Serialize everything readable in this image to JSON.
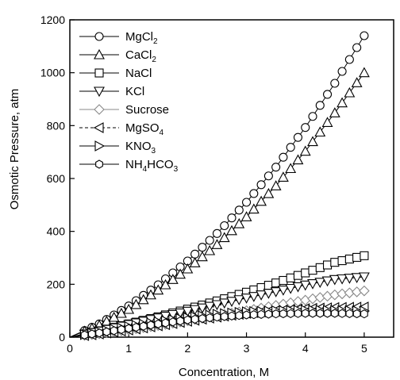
{
  "chart_data": {
    "type": "scatter",
    "xlabel": "Concentration, M",
    "ylabel": "Osmotic Pressure, atm",
    "xlim": [
      0,
      5.5
    ],
    "ylim": [
      0,
      1200
    ],
    "xticks": [
      "0",
      "1",
      "2",
      "3",
      "4",
      "5"
    ],
    "yticks": [
      "0",
      "200",
      "400",
      "600",
      "800",
      "1000",
      "1200"
    ],
    "grid": false,
    "legend_position": "top-left",
    "series": [
      {
        "name": "MgCl2",
        "label_main": "MgCl",
        "label_sub": "2",
        "label_tail": "",
        "marker": "circle",
        "dashed": false,
        "x": [
          0,
          0.5,
          1,
          1.5,
          2,
          2.5,
          3,
          3.5,
          4,
          4.5,
          5
        ],
        "y": [
          0,
          50,
          118,
          198,
          288,
          392,
          510,
          643,
          793,
          960,
          1140
        ]
      },
      {
        "name": "CaCl2",
        "label_main": "CaCl",
        "label_sub": "2",
        "label_tail": "",
        "marker": "triangle-up",
        "dashed": false,
        "x": [
          0,
          0.5,
          1,
          1.5,
          2,
          2.5,
          3,
          3.5,
          4,
          4.5,
          5
        ],
        "y": [
          0,
          45,
          105,
          178,
          258,
          350,
          455,
          572,
          703,
          848,
          1000
        ]
      },
      {
        "name": "NaCl",
        "label_main": "NaCl",
        "label_sub": "",
        "label_tail": "",
        "marker": "square",
        "dashed": false,
        "x": [
          0,
          0.5,
          1,
          1.5,
          2,
          2.5,
          3,
          3.5,
          4,
          4.5,
          5
        ],
        "y": [
          0,
          24,
          50,
          77,
          106,
          137,
          170,
          205,
          243,
          283,
          308
        ]
      },
      {
        "name": "KCl",
        "label_main": "KCl",
        "label_sub": "",
        "label_tail": "",
        "marker": "triangle-down",
        "dashed": false,
        "x": [
          0,
          0.5,
          1,
          1.5,
          2,
          2.5,
          3,
          3.5,
          4,
          4.5,
          5
        ],
        "y": [
          0,
          23,
          48,
          73,
          98,
          123,
          148,
          172,
          197,
          218,
          228
        ]
      },
      {
        "name": "Sucrose",
        "label_main": "Sucrose",
        "label_sub": "",
        "label_tail": "",
        "marker": "diamond",
        "dashed": false,
        "x": [
          0,
          0.5,
          1,
          1.5,
          2,
          2.5,
          3,
          3.5,
          4,
          4.5,
          5
        ],
        "y": [
          0,
          13,
          28,
          44,
          62,
          81,
          100,
          120,
          140,
          160,
          175
        ]
      },
      {
        "name": "MgSO4",
        "label_main": "MgSO",
        "label_sub": "4",
        "label_tail": "",
        "marker": "triangle-left",
        "dashed": true,
        "x": [
          0,
          0.5,
          1,
          1.5,
          2,
          2.5,
          3,
          3.5,
          4,
          4.5,
          5
        ],
        "y": [
          0,
          12,
          27,
          43,
          60,
          76,
          90,
          101,
          108,
          112,
          114
        ]
      },
      {
        "name": "KNO3",
        "label_main": "KNO",
        "label_sub": "3",
        "label_tail": "",
        "marker": "triangle-right",
        "dashed": false,
        "x": [
          0,
          0.5,
          1,
          1.5,
          2,
          2.5,
          3,
          3.5,
          4,
          4.5,
          5
        ],
        "y": [
          0,
          20,
          40,
          58,
          74,
          87,
          96,
          100,
          102,
          101,
          99
        ]
      },
      {
        "name": "NH4HCO3",
        "label_main": "NH",
        "label_sub": "4",
        "label_tail": "HCO",
        "label_sub2": "3",
        "marker": "hexagon",
        "dashed": false,
        "x": [
          0,
          0.5,
          1,
          1.5,
          2,
          2.5,
          3,
          3.5,
          4,
          4.5,
          5
        ],
        "y": [
          0,
          16,
          33,
          50,
          65,
          76,
          84,
          88,
          90,
          90,
          88
        ]
      }
    ]
  }
}
